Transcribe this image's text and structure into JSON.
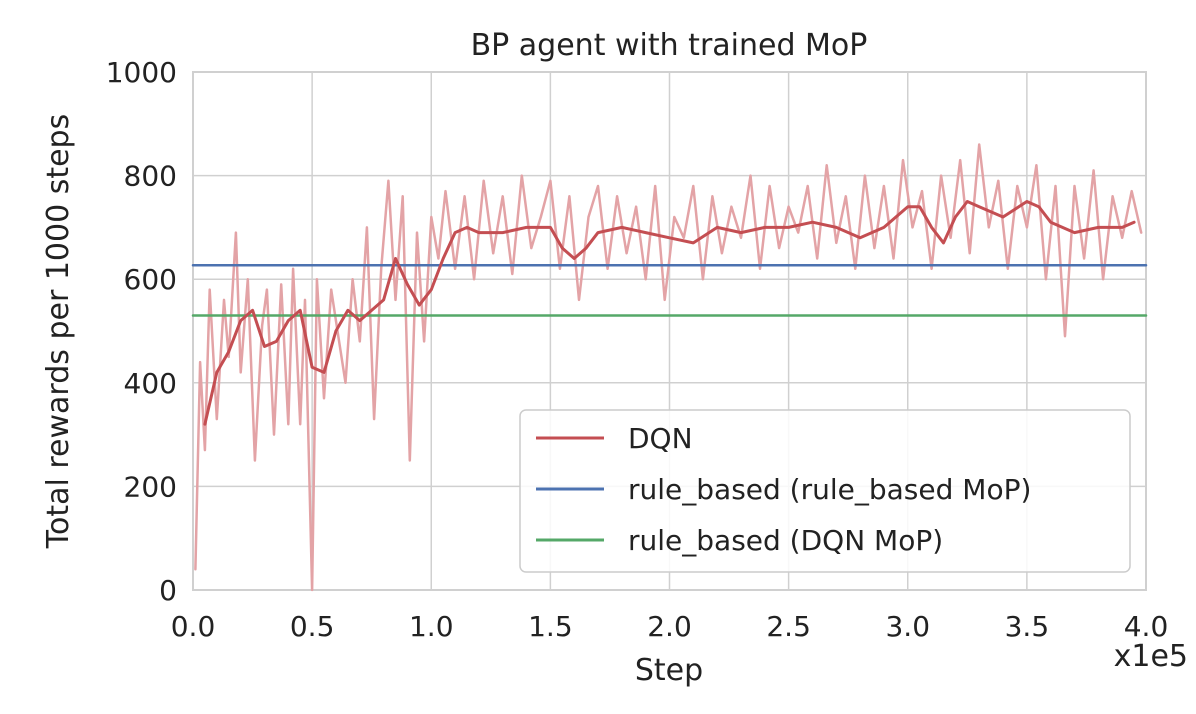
{
  "chart_data": {
    "type": "line",
    "title": "BP agent with trained MoP",
    "xlabel": "Step",
    "ylabel": "Total rewards per 1000 steps",
    "x_multiplier_label": "x1e5",
    "xlim": [
      0,
      4.0
    ],
    "ylim": [
      0,
      1000
    ],
    "x_ticks": [
      0.0,
      0.5,
      1.0,
      1.5,
      2.0,
      2.5,
      3.0,
      3.5,
      4.0
    ],
    "x_tick_labels": [
      "0.0",
      "0.5",
      "1.0",
      "1.5",
      "2.0",
      "2.5",
      "3.0",
      "3.5",
      "4.0"
    ],
    "y_ticks": [
      0,
      200,
      400,
      600,
      800,
      1000
    ],
    "y_tick_labels": [
      "0",
      "200",
      "400",
      "600",
      "800",
      "1000"
    ],
    "grid": true,
    "legend_position": "lower-right",
    "colors": {
      "dqn": "#c44e52",
      "dqn_raw": "#e3a3a6",
      "rule_based_rule_mop": "#4c72b0",
      "rule_based_dqn_mop": "#55a868",
      "grid": "#d0d0d0"
    },
    "series": [
      {
        "name": "DQN",
        "kind": "smoothed",
        "x": [
          0.05,
          0.1,
          0.15,
          0.2,
          0.25,
          0.3,
          0.35,
          0.4,
          0.45,
          0.5,
          0.55,
          0.6,
          0.65,
          0.7,
          0.75,
          0.8,
          0.85,
          0.9,
          0.95,
          1.0,
          1.05,
          1.1,
          1.15,
          1.2,
          1.3,
          1.4,
          1.5,
          1.55,
          1.6,
          1.65,
          1.7,
          1.8,
          1.9,
          2.0,
          2.1,
          2.2,
          2.3,
          2.4,
          2.5,
          2.6,
          2.7,
          2.8,
          2.9,
          3.0,
          3.05,
          3.1,
          3.15,
          3.2,
          3.25,
          3.3,
          3.4,
          3.5,
          3.55,
          3.6,
          3.7,
          3.8,
          3.9,
          3.95
        ],
        "values": [
          320,
          420,
          460,
          520,
          540,
          470,
          480,
          520,
          540,
          430,
          420,
          500,
          540,
          520,
          540,
          560,
          640,
          590,
          550,
          580,
          640,
          690,
          700,
          690,
          690,
          700,
          700,
          660,
          640,
          660,
          690,
          700,
          690,
          680,
          670,
          700,
          690,
          700,
          700,
          710,
          700,
          680,
          700,
          740,
          740,
          700,
          670,
          720,
          750,
          740,
          720,
          750,
          740,
          710,
          690,
          700,
          700,
          710
        ]
      },
      {
        "name": "DQN (raw)",
        "kind": "raw",
        "x": [
          0.01,
          0.03,
          0.05,
          0.07,
          0.1,
          0.13,
          0.15,
          0.18,
          0.2,
          0.23,
          0.26,
          0.29,
          0.31,
          0.34,
          0.37,
          0.4,
          0.42,
          0.45,
          0.47,
          0.5,
          0.52,
          0.55,
          0.58,
          0.61,
          0.64,
          0.67,
          0.7,
          0.73,
          0.76,
          0.79,
          0.82,
          0.85,
          0.88,
          0.91,
          0.94,
          0.97,
          1.0,
          1.03,
          1.06,
          1.1,
          1.14,
          1.18,
          1.22,
          1.26,
          1.3,
          1.34,
          1.38,
          1.42,
          1.46,
          1.5,
          1.54,
          1.58,
          1.62,
          1.66,
          1.7,
          1.74,
          1.78,
          1.82,
          1.86,
          1.9,
          1.94,
          1.98,
          2.02,
          2.06,
          2.1,
          2.14,
          2.18,
          2.22,
          2.26,
          2.3,
          2.34,
          2.38,
          2.42,
          2.46,
          2.5,
          2.54,
          2.58,
          2.62,
          2.66,
          2.7,
          2.74,
          2.78,
          2.82,
          2.86,
          2.9,
          2.94,
          2.98,
          3.02,
          3.06,
          3.1,
          3.14,
          3.18,
          3.22,
          3.26,
          3.3,
          3.34,
          3.38,
          3.42,
          3.46,
          3.5,
          3.54,
          3.58,
          3.62,
          3.66,
          3.7,
          3.74,
          3.78,
          3.82,
          3.86,
          3.9,
          3.94,
          3.98
        ],
        "values": [
          40,
          440,
          270,
          580,
          330,
          560,
          450,
          690,
          420,
          600,
          250,
          510,
          580,
          300,
          590,
          320,
          620,
          320,
          560,
          0,
          600,
          370,
          580,
          490,
          400,
          600,
          480,
          700,
          330,
          620,
          790,
          560,
          760,
          250,
          690,
          480,
          720,
          640,
          770,
          620,
          760,
          600,
          790,
          650,
          760,
          610,
          800,
          660,
          720,
          790,
          620,
          760,
          560,
          720,
          780,
          620,
          760,
          650,
          740,
          600,
          780,
          560,
          720,
          680,
          780,
          600,
          760,
          650,
          740,
          680,
          800,
          620,
          780,
          660,
          740,
          690,
          780,
          640,
          820,
          670,
          760,
          620,
          800,
          660,
          780,
          640,
          830,
          700,
          770,
          620,
          800,
          680,
          830,
          650,
          860,
          700,
          790,
          620,
          780,
          700,
          820,
          600,
          780,
          490,
          780,
          640,
          810,
          600,
          760,
          680,
          770,
          690
        ]
      },
      {
        "name": "rule_based (rule_based MoP)",
        "kind": "constant",
        "x": [
          0,
          4.0
        ],
        "values": [
          627,
          627
        ]
      },
      {
        "name": "rule_based (DQN MoP)",
        "kind": "constant",
        "x": [
          0,
          4.0
        ],
        "values": [
          530,
          530
        ]
      }
    ],
    "legend": [
      {
        "label": "DQN",
        "color": "#c44e52"
      },
      {
        "label": "rule_based (rule_based MoP)",
        "color": "#4c72b0"
      },
      {
        "label": "rule_based (DQN MoP)",
        "color": "#55a868"
      }
    ]
  }
}
